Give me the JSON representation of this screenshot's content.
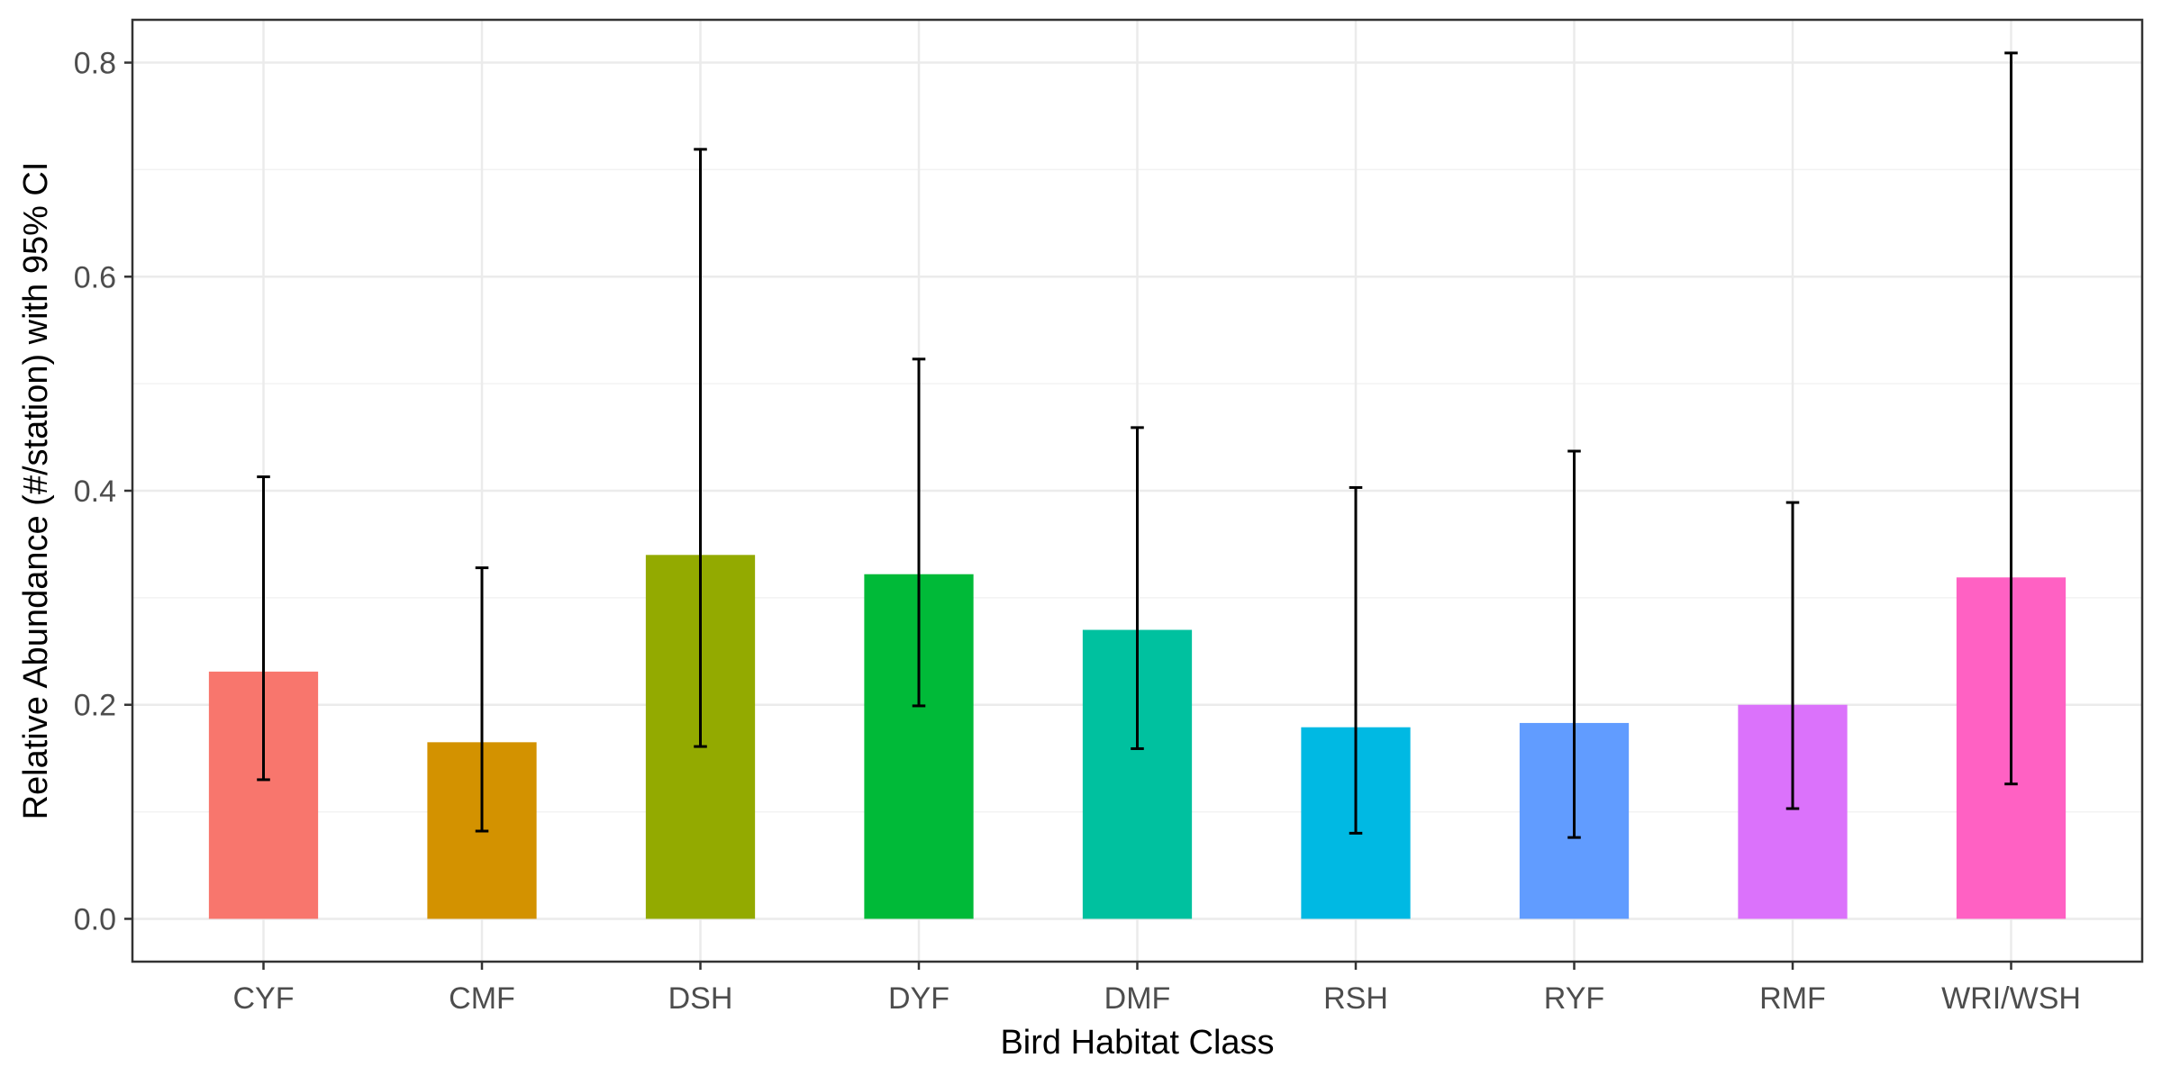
{
  "chart_data": {
    "type": "bar",
    "title": "",
    "xlabel": "Bird Habitat Class",
    "ylabel": "Relative Abundance (#/station) with 95% CI",
    "categories": [
      "CYF",
      "CMF",
      "DSH",
      "DYF",
      "DMF",
      "RSH",
      "RYF",
      "RMF",
      "WRI/WSH"
    ],
    "values": [
      0.231,
      0.165,
      0.34,
      0.322,
      0.27,
      0.179,
      0.183,
      0.2,
      0.319
    ],
    "ci_lower": [
      0.13,
      0.082,
      0.161,
      0.199,
      0.159,
      0.08,
      0.076,
      0.103,
      0.126
    ],
    "ci_upper": [
      0.413,
      0.328,
      0.719,
      0.523,
      0.459,
      0.403,
      0.437,
      0.389,
      0.809
    ],
    "colors": [
      "#F8766D",
      "#D39200",
      "#93AA00",
      "#00BA38",
      "#00C19F",
      "#00B9E3",
      "#619CFF",
      "#DB72FB",
      "#FF61C3"
    ],
    "ylim": [
      -0.04,
      0.84
    ],
    "yticks": [
      "0.0",
      "0.2",
      "0.4",
      "0.6",
      "0.8"
    ],
    "ytick_values": [
      0,
      0.2,
      0.4,
      0.6,
      0.8
    ],
    "grid": true,
    "legend": "none"
  }
}
